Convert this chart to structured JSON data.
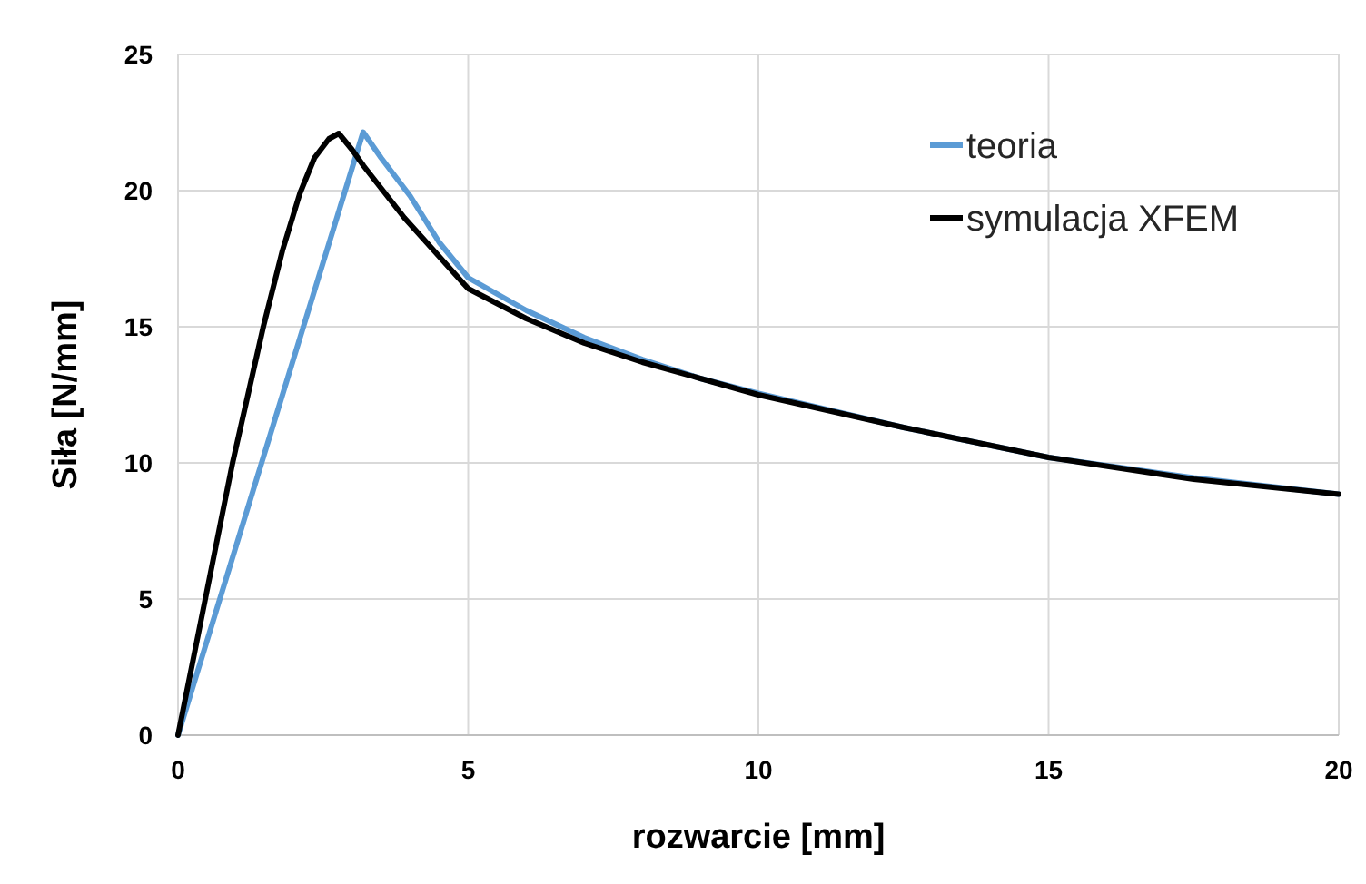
{
  "chart_data": {
    "type": "line",
    "xlabel": "rozwarcie [mm]",
    "ylabel": "Siła [N/mm]",
    "xlim": [
      0,
      20
    ],
    "ylim": [
      0,
      25
    ],
    "xticks": [
      0,
      5,
      10,
      15,
      20
    ],
    "yticks": [
      0,
      5,
      10,
      15,
      20,
      25
    ],
    "grid": true,
    "legend": "top right",
    "line_style": "solid",
    "series": [
      {
        "name": "teoria",
        "color": "#5b9bd5",
        "x": [
          0,
          3.19,
          3.5,
          4,
          4.5,
          5,
          6,
          7,
          8,
          9,
          10,
          12.5,
          15,
          17.5,
          20
        ],
        "values": [
          0,
          22.15,
          21.2,
          19.8,
          18.1,
          16.8,
          15.6,
          14.6,
          13.8,
          13.1,
          12.55,
          11.3,
          10.2,
          9.45,
          8.85
        ]
      },
      {
        "name": "symulacja XFEM",
        "color": "#000000",
        "x": [
          0,
          0.47,
          0.94,
          1.47,
          1.8,
          2.1,
          2.35,
          2.6,
          2.77,
          3.0,
          3.2,
          3.9,
          5,
          6,
          7,
          8,
          9,
          10,
          12.5,
          15,
          17.5,
          20
        ],
        "values": [
          0,
          5,
          10,
          15,
          17.8,
          19.9,
          21.2,
          21.9,
          22.1,
          21.5,
          20.9,
          19.0,
          16.4,
          15.3,
          14.4,
          13.7,
          13.1,
          12.5,
          11.3,
          10.2,
          9.4,
          8.85
        ]
      }
    ]
  }
}
